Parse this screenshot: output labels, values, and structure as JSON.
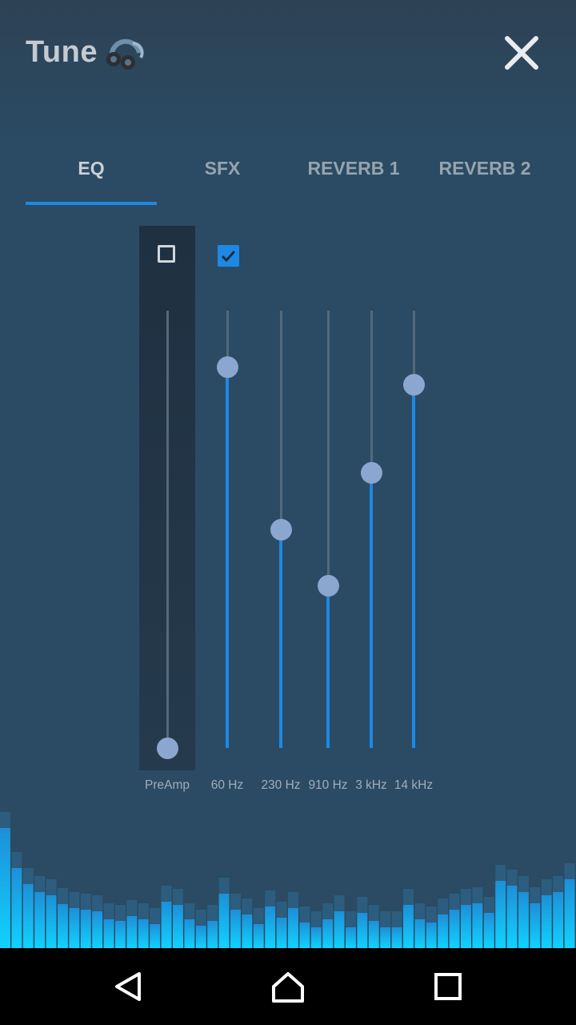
{
  "app": {
    "title": "Tune",
    "logo_icon": "headphones-icon",
    "close_icon": "close-icon"
  },
  "tabs": [
    {
      "label": "EQ",
      "active": true
    },
    {
      "label": "SFX",
      "active": false
    },
    {
      "label": "REVERB 1",
      "active": false
    },
    {
      "label": "REVERB 2",
      "active": false
    }
  ],
  "eq": {
    "preamp_enabled": false,
    "eq_enabled": true,
    "bands": [
      {
        "label": "PreAmp",
        "level": 0.0
      },
      {
        "label": "60 Hz",
        "level": 0.87
      },
      {
        "label": "230 Hz",
        "level": 0.5
      },
      {
        "label": "910 Hz",
        "level": 0.37
      },
      {
        "label": "3 kHz",
        "level": 0.63
      },
      {
        "label": "14 kHz",
        "level": 0.83
      }
    ]
  },
  "colors": {
    "accent": "#1e88e5",
    "thumb": "#8ba7d0",
    "background": "#2a4b63"
  },
  "navbar": {
    "back_icon": "back-triangle-icon",
    "home_icon": "home-icon",
    "recents_icon": "recents-square-icon"
  }
}
